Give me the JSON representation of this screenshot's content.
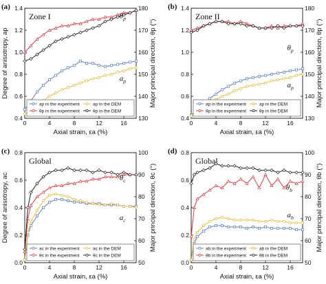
{
  "chart_data": [
    {
      "type": "line",
      "panel_label": "(a)",
      "zone_label": "Zone I",
      "xlabel": "Axial strain, εa (%)",
      "ylabel_left": "Degree of anisotropy, ap",
      "ylabel_right": "Major principal direction, θp (°)",
      "xlim": [
        0,
        18
      ],
      "xticks": [
        "0",
        "4",
        "8",
        "12",
        "16"
      ],
      "ylim_left": [
        0.4,
        1.4
      ],
      "yticks_left": [
        "0.4",
        "0.6",
        "0.8",
        "1.0",
        "1.2",
        "1.4"
      ],
      "ylim_right": [
        130,
        180
      ],
      "yticks_right": [
        "130",
        "140",
        "150",
        "160",
        "170",
        "180"
      ],
      "annotations": [
        {
          "text": "θp",
          "x": 15.3,
          "y": 1.31,
          "axis": "left"
        },
        {
          "text": "ap",
          "x": 15.3,
          "y": 0.74,
          "axis": "left"
        }
      ],
      "legend": [
        "ap in the experiment",
        "ap in the DEM",
        "θp in the experiment",
        "θp in the DEM"
      ],
      "series": [
        {
          "name": "ap in the experiment",
          "axis": "left",
          "color": "#5b7fd0",
          "marker": "square",
          "x": [
            0,
            1,
            2,
            3,
            4,
            5,
            6,
            7,
            8,
            9,
            10,
            11,
            12,
            13,
            14,
            15,
            16,
            17,
            18
          ],
          "y": [
            0.48,
            0.56,
            0.64,
            0.7,
            0.75,
            0.79,
            0.83,
            0.86,
            0.88,
            0.92,
            0.9,
            0.9,
            0.88,
            0.87,
            0.88,
            0.89,
            0.9,
            0.91,
            0.92
          ]
        },
        {
          "name": "ap in the DEM",
          "axis": "left",
          "color": "#f0b830",
          "marker": "circle",
          "x": [
            0,
            1,
            2,
            3,
            4,
            5,
            6,
            7,
            8,
            9,
            10,
            11,
            12,
            13,
            14,
            15,
            16,
            17,
            18
          ],
          "y": [
            0.44,
            0.48,
            0.52,
            0.56,
            0.6,
            0.63,
            0.66,
            0.68,
            0.7,
            0.72,
            0.74,
            0.76,
            0.77,
            0.79,
            0.8,
            0.82,
            0.83,
            0.85,
            0.86
          ]
        },
        {
          "name": "θp in the experiment",
          "axis": "right",
          "color": "#e8383d",
          "marker": "triangle",
          "x": [
            0,
            1,
            2,
            3,
            4,
            5,
            6,
            7,
            8,
            9,
            10,
            11,
            12,
            13,
            14,
            15,
            16,
            17,
            18
          ],
          "y": [
            160,
            163,
            166,
            168,
            170,
            171,
            172,
            172,
            173,
            173,
            174,
            175,
            175,
            176,
            176,
            177,
            178,
            178,
            179
          ]
        },
        {
          "name": "θp in the DEM",
          "axis": "right",
          "color": "#222222",
          "marker": "diamond",
          "x": [
            0,
            1,
            2,
            3,
            4,
            5,
            6,
            7,
            8,
            9,
            10,
            11,
            12,
            13,
            14,
            15,
            16,
            17,
            18
          ],
          "y": [
            156,
            157,
            159,
            161,
            163,
            165,
            166,
            167,
            168,
            169,
            170,
            171,
            172,
            174,
            175,
            176,
            177,
            178,
            179
          ]
        }
      ]
    },
    {
      "type": "line",
      "panel_label": "(b)",
      "zone_label": "Zone II",
      "xlabel": "Axial strain, εa (%)",
      "ylabel_left": "",
      "ylabel_right": "Major principal direction, θp (°)",
      "xlim": [
        0,
        18
      ],
      "xticks": [
        "0",
        "4",
        "8",
        "12",
        "16"
      ],
      "ylim_left": [
        0.4,
        1.4
      ],
      "yticks_left": [
        "0.4",
        "0.6",
        "0.8",
        "1.0",
        "1.2",
        "1.4"
      ],
      "ylim_right": [
        130,
        180
      ],
      "yticks_right": [
        "130",
        "140",
        "150",
        "160",
        "170",
        "180"
      ],
      "annotations": [
        {
          "text": "θp",
          "x": 15.5,
          "y": 1.02,
          "axis": "left"
        },
        {
          "text": "ap",
          "x": 15.5,
          "y": 0.68,
          "axis": "left"
        }
      ],
      "legend": [
        "ap in the experiment",
        "ap in the DEM",
        "θp in the experiment",
        "θp in the DEM"
      ],
      "series": [
        {
          "name": "ap in the experiment",
          "axis": "left",
          "color": "#5b7fd0",
          "marker": "square",
          "x": [
            0,
            1,
            2,
            3,
            4,
            5,
            6,
            7,
            8,
            9,
            10,
            11,
            12,
            13,
            14,
            15,
            16,
            17,
            18
          ],
          "y": [
            0.43,
            0.48,
            0.53,
            0.58,
            0.62,
            0.66,
            0.69,
            0.72,
            0.74,
            0.76,
            0.77,
            0.78,
            0.79,
            0.8,
            0.81,
            0.82,
            0.83,
            0.84,
            0.85
          ]
        },
        {
          "name": "ap in the DEM",
          "axis": "left",
          "color": "#f0b830",
          "marker": "circle",
          "x": [
            0,
            1,
            2,
            3,
            4,
            5,
            6,
            7,
            8,
            9,
            10,
            11,
            12,
            13,
            14,
            15,
            16,
            17,
            18
          ],
          "y": [
            0.42,
            0.45,
            0.49,
            0.53,
            0.57,
            0.6,
            0.62,
            0.65,
            0.67,
            0.69,
            0.7,
            0.71,
            0.72,
            0.74,
            0.75,
            0.76,
            0.77,
            0.79,
            0.8
          ]
        },
        {
          "name": "θp in the experiment",
          "axis": "right",
          "color": "#e8383d",
          "marker": "triangle",
          "x": [
            0,
            1,
            2,
            3,
            4,
            5,
            6,
            7,
            8,
            9,
            10,
            11,
            12,
            13,
            14,
            15,
            16,
            17,
            18
          ],
          "y": [
            170,
            171,
            172,
            173,
            174,
            174,
            174,
            173,
            174,
            173,
            172,
            171,
            171,
            172,
            171,
            172,
            172,
            172,
            173
          ]
        },
        {
          "name": "θp in the DEM",
          "axis": "right",
          "color": "#222222",
          "marker": "diamond",
          "x": [
            0,
            1,
            2,
            3,
            4,
            5,
            6,
            7,
            8,
            9,
            10,
            11,
            12,
            13,
            14,
            15,
            16,
            17,
            18
          ],
          "y": [
            169,
            170,
            172,
            173,
            174,
            174,
            173,
            173,
            173,
            172,
            172,
            171,
            171,
            171,
            172,
            171,
            172,
            172,
            172
          ]
        }
      ]
    },
    {
      "type": "line",
      "panel_label": "(c)",
      "zone_label": "Global",
      "xlabel": "Axial strain, εa (%)",
      "ylabel_left": "Degree of anisotropy, ac",
      "ylabel_right": "Major principal direction, θc (°)",
      "xlim": [
        0,
        18
      ],
      "xticks": [
        "0",
        "4",
        "8",
        "12",
        "16"
      ],
      "ylim_left": [
        0.0,
        0.8
      ],
      "yticks_left": [
        "0.0",
        "0.2",
        "0.4",
        "0.6",
        "0.8"
      ],
      "ylim_right": [
        50,
        100
      ],
      "yticks_right": [
        "50",
        "60",
        "70",
        "80",
        "90",
        "100"
      ],
      "annotations": [
        {
          "text": "θc",
          "x": 15.3,
          "y": 0.6,
          "axis": "left"
        },
        {
          "text": "ac",
          "x": 15.3,
          "y": 0.31,
          "axis": "left"
        }
      ],
      "legend": [
        "ac in the experiment",
        "ac in the DEM",
        "θc in the experiment",
        "θc in the DEM"
      ],
      "series": [
        {
          "name": "ac in the experiment",
          "axis": "left",
          "color": "#5b7fd0",
          "marker": "square",
          "x": [
            0,
            0.5,
            1,
            2,
            3,
            4,
            5,
            6,
            7,
            8,
            9,
            10,
            11,
            12,
            13,
            14,
            15,
            16,
            17,
            18
          ],
          "y": [
            0.02,
            0.2,
            0.27,
            0.34,
            0.4,
            0.44,
            0.46,
            0.46,
            0.45,
            0.44,
            0.44,
            0.43,
            0.43,
            0.43,
            0.42,
            0.42,
            0.42,
            0.41,
            0.41,
            0.41
          ]
        },
        {
          "name": "ac in the DEM",
          "axis": "left",
          "color": "#f0b830",
          "marker": "circle",
          "x": [
            0,
            0.5,
            1,
            2,
            3,
            4,
            5,
            6,
            7,
            8,
            9,
            10,
            11,
            12,
            13,
            14,
            15,
            16,
            17,
            18
          ],
          "y": [
            0.02,
            0.22,
            0.3,
            0.38,
            0.45,
            0.49,
            0.5,
            0.49,
            0.48,
            0.46,
            0.45,
            0.44,
            0.43,
            0.42,
            0.42,
            0.43,
            0.42,
            0.41,
            0.41,
            0.4
          ]
        },
        {
          "name": "θc in the experiment",
          "axis": "right",
          "color": "#e8383d",
          "marker": "triangle",
          "x": [
            0,
            0.5,
            1,
            2,
            3,
            4,
            5,
            6,
            7,
            8,
            9,
            10,
            11,
            12,
            13,
            14,
            15,
            16,
            17,
            18
          ],
          "y": [
            55,
            70,
            76,
            80,
            82,
            84,
            85,
            85,
            86,
            86,
            87,
            87,
            88,
            88,
            89,
            89,
            89,
            90,
            90,
            90
          ]
        },
        {
          "name": "θc in the DEM",
          "axis": "right",
          "color": "#222222",
          "marker": "diamond",
          "x": [
            0,
            0.5,
            1,
            2,
            3,
            4,
            5,
            6,
            7,
            8,
            9,
            10,
            11,
            12,
            13,
            14,
            15,
            16,
            17,
            18
          ],
          "y": [
            56,
            75,
            82,
            86,
            89,
            91,
            92,
            92,
            93,
            92,
            92,
            92,
            91,
            92,
            91,
            91,
            90,
            91,
            90,
            90
          ]
        }
      ]
    },
    {
      "type": "line",
      "panel_label": "(d)",
      "zone_label": "Global",
      "xlabel": "Axial strain, εa (%)",
      "ylabel_left": "",
      "ylabel_right": "Major principal direction, θb (°)",
      "xlim": [
        0,
        18
      ],
      "xticks": [
        "0",
        "4",
        "8",
        "12",
        "16"
      ],
      "ylim_left": [
        0.0,
        0.8
      ],
      "yticks_left": [
        "0.0",
        "0.2",
        "0.4",
        "0.6",
        "0.8"
      ],
      "ylim_right": [
        50,
        100
      ],
      "yticks_right": [
        "50",
        "60",
        "70",
        "80",
        "90",
        "100"
      ],
      "annotations": [
        {
          "text": "θb",
          "x": 15.3,
          "y": 0.53,
          "axis": "left"
        },
        {
          "text": "ab",
          "x": 15.5,
          "y": 0.33,
          "axis": "left"
        }
      ],
      "legend": [
        "ab in the experiment",
        "ab in the DEM",
        "θb in the experiment",
        "θb in the DEM"
      ],
      "series": [
        {
          "name": "ab in the experiment",
          "axis": "left",
          "color": "#5b7fd0",
          "marker": "square",
          "x": [
            0,
            0.5,
            1,
            2,
            3,
            4,
            5,
            6,
            7,
            8,
            9,
            10,
            11,
            12,
            13,
            14,
            15,
            16,
            17,
            18
          ],
          "y": [
            0.02,
            0.14,
            0.19,
            0.23,
            0.26,
            0.27,
            0.27,
            0.26,
            0.26,
            0.26,
            0.25,
            0.26,
            0.25,
            0.26,
            0.25,
            0.25,
            0.25,
            0.25,
            0.24,
            0.24
          ]
        },
        {
          "name": "ab in the DEM",
          "axis": "left",
          "color": "#f0b830",
          "marker": "circle",
          "x": [
            0,
            0.5,
            1,
            2,
            3,
            4,
            5,
            6,
            7,
            8,
            9,
            10,
            11,
            12,
            13,
            14,
            15,
            16,
            17,
            18
          ],
          "y": [
            0.02,
            0.17,
            0.22,
            0.27,
            0.3,
            0.32,
            0.33,
            0.32,
            0.31,
            0.31,
            0.31,
            0.31,
            0.3,
            0.3,
            0.31,
            0.3,
            0.3,
            0.29,
            0.29,
            0.29
          ]
        },
        {
          "name": "θb in the experiment",
          "axis": "right",
          "color": "#e8383d",
          "marker": "triangle",
          "x": [
            0,
            0.5,
            1,
            2,
            3,
            4,
            5,
            6,
            7,
            8,
            9,
            10,
            11,
            12,
            13,
            14,
            15,
            16,
            17,
            18
          ],
          "y": [
            62,
            75,
            79,
            81,
            83,
            85,
            84,
            87,
            86,
            88,
            86,
            89,
            84,
            90,
            85,
            88,
            84,
            87,
            86,
            87
          ]
        },
        {
          "name": "θb in the DEM",
          "axis": "right",
          "color": "#222222",
          "marker": "diamond",
          "x": [
            0,
            0.5,
            1,
            2,
            3,
            4,
            5,
            6,
            7,
            8,
            9,
            10,
            11,
            12,
            13,
            14,
            15,
            16,
            17,
            18
          ],
          "y": [
            86,
            90,
            91,
            92,
            93,
            95,
            94,
            94,
            94,
            93,
            93,
            93,
            92,
            92,
            92,
            91,
            92,
            91,
            91,
            91
          ]
        }
      ]
    }
  ]
}
